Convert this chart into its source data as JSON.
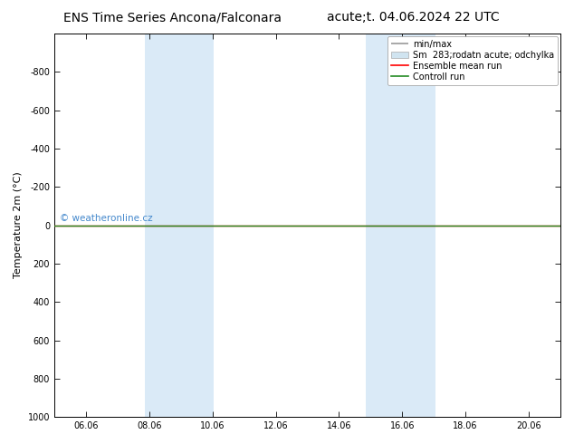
{
  "title_left": "ENS Time Series Ancona/Falconara",
  "title_right": "acute;t. 04.06.2024 22 UTC",
  "ylabel": "Temperature 2m (°C)",
  "ylim_bottom": 1000,
  "ylim_top": -1000,
  "yticks": [
    -800,
    -600,
    -400,
    -200,
    0,
    200,
    400,
    600,
    800,
    1000
  ],
  "xlim_left": 5.0,
  "xlim_right": 21.0,
  "xtick_labels": [
    "06.06",
    "08.06",
    "10.06",
    "12.06",
    "14.06",
    "16.06",
    "18.06",
    "20.06"
  ],
  "xtick_positions": [
    6,
    8,
    10,
    12,
    14,
    16,
    18,
    20
  ],
  "shade_bands": [
    {
      "xmin": 7.85,
      "xmax": 10.05,
      "color": "#daeaf7"
    },
    {
      "xmin": 14.85,
      "xmax": 17.05,
      "color": "#daeaf7"
    }
  ],
  "hline_y": 0,
  "hline_color_green": "#228B22",
  "hline_color_red": "#ff0000",
  "watermark": "© weatheronline.cz",
  "watermark_color": "#4488cc",
  "background_color": "#ffffff",
  "plot_bg_color": "#ffffff",
  "title_fontsize": 10,
  "ylabel_fontsize": 8,
  "tick_fontsize": 7,
  "legend_fontsize": 7
}
